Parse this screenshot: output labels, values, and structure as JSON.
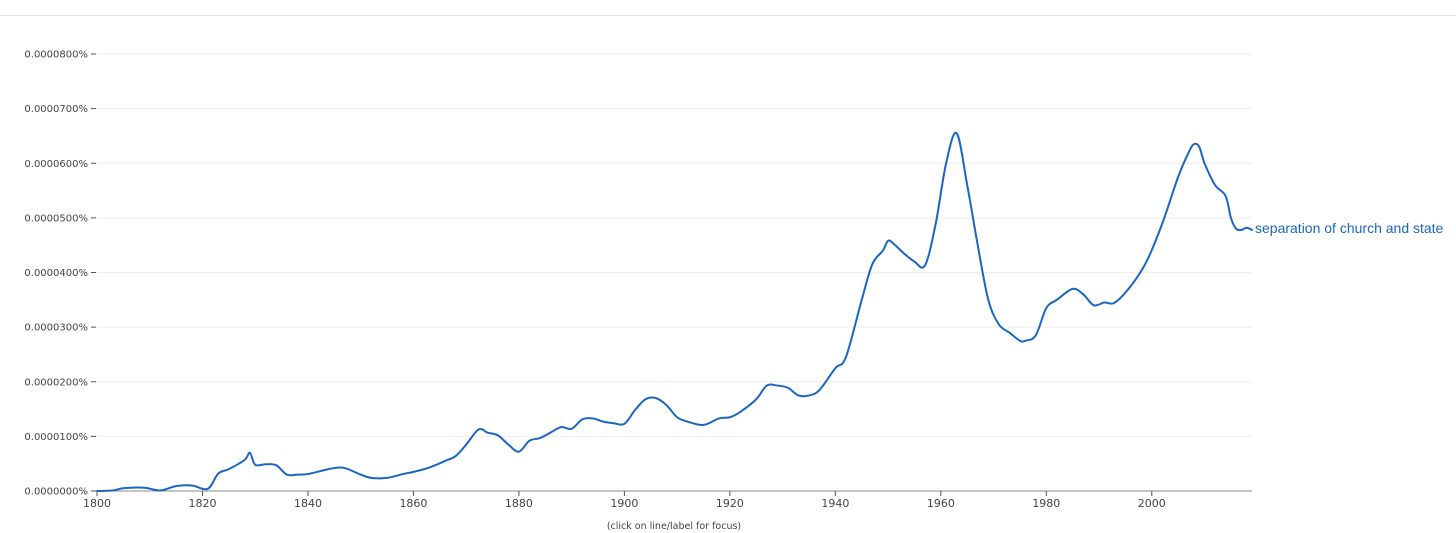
{
  "footnote": "(click on line/label for focus)",
  "chart_data": {
    "type": "line",
    "title": "",
    "xlabel": "",
    "ylabel": "",
    "xlim": [
      1800,
      2019
    ],
    "ylim": [
      0,
      8e-05
    ],
    "yticks": [
      {
        "value": 0.0,
        "label": "0.0000000%"
      },
      {
        "value": 1e-05,
        "label": "0.0000100%"
      },
      {
        "value": 2e-05,
        "label": "0.0000200%"
      },
      {
        "value": 3e-05,
        "label": "0.0000300%"
      },
      {
        "value": 4e-05,
        "label": "0.0000400%"
      },
      {
        "value": 5e-05,
        "label": "0.0000500%"
      },
      {
        "value": 6e-05,
        "label": "0.0000600%"
      },
      {
        "value": 7e-05,
        "label": "0.0000700%"
      },
      {
        "value": 8e-05,
        "label": "0.0000800%"
      }
    ],
    "xticks": [
      1800,
      1820,
      1840,
      1860,
      1880,
      1900,
      1920,
      1940,
      1960,
      1980,
      2000
    ],
    "grid": true,
    "colors": {
      "line": "#1a66c2",
      "grid": "#eeeeee",
      "axis": "#888888"
    },
    "series": [
      {
        "name": "separation of church and state",
        "x": [
          1800,
          1803,
          1805,
          1809,
          1812,
          1815,
          1818,
          1821,
          1823,
          1825,
          1828,
          1829,
          1830,
          1832,
          1834,
          1836,
          1838,
          1840,
          1843,
          1845,
          1847,
          1850,
          1852,
          1855,
          1858,
          1860,
          1863,
          1866,
          1868,
          1870,
          1872,
          1873,
          1874,
          1876,
          1878,
          1880,
          1882,
          1884,
          1886,
          1888,
          1890,
          1892,
          1894,
          1896,
          1898,
          1900,
          1902,
          1904,
          1906,
          1908,
          1910,
          1912,
          1915,
          1918,
          1920,
          1922,
          1925,
          1927,
          1929,
          1931,
          1933,
          1935,
          1937,
          1940,
          1942,
          1945,
          1947,
          1949,
          1950,
          1951,
          1953,
          1955,
          1957,
          1959,
          1961,
          1963,
          1965,
          1967,
          1969,
          1971,
          1973,
          1975,
          1976,
          1978,
          1980,
          1982,
          1985,
          1987,
          1989,
          1991,
          1993,
          1996,
          1999,
          2002,
          2005,
          2007,
          2008,
          2009,
          2010,
          2012,
          2014,
          2015,
          2016,
          2017,
          2018,
          2019
        ],
        "y": [
          0.0,
          1e-07,
          5e-07,
          6e-07,
          1e-07,
          9e-07,
          1e-06,
          4e-07,
          3.2e-06,
          4e-06,
          5.7e-06,
          7e-06,
          4.8e-06,
          4.9e-06,
          4.7e-06,
          3e-06,
          3e-06,
          3.1e-06,
          3.8e-06,
          4.2e-06,
          4.2e-06,
          3e-06,
          2.4e-06,
          2.4e-06,
          3.1e-06,
          3.5e-06,
          4.3e-06,
          5.5e-06,
          6.4e-06,
          8.5e-06,
          1.1e-05,
          1.13e-05,
          1.07e-05,
          1.02e-05,
          8.5e-06,
          7.2e-06,
          9.2e-06,
          9.7e-06,
          1.07e-05,
          1.17e-05,
          1.14e-05,
          1.31e-05,
          1.33e-05,
          1.27e-05,
          1.24e-05,
          1.23e-05,
          1.48e-05,
          1.68e-05,
          1.7e-05,
          1.57e-05,
          1.35e-05,
          1.27e-05,
          1.21e-05,
          1.33e-05,
          1.35e-05,
          1.45e-05,
          1.68e-05,
          1.93e-05,
          1.93e-05,
          1.89e-05,
          1.75e-05,
          1.75e-05,
          1.85e-05,
          2.25e-05,
          2.45e-05,
          3.5e-05,
          4.15e-05,
          4.4e-05,
          4.58e-05,
          4.53e-05,
          4.35e-05,
          4.2e-05,
          4.13e-05,
          4.88e-05,
          6e-05,
          6.55e-05,
          5.6e-05,
          4.5e-05,
          3.5e-05,
          3.05e-05,
          2.9e-05,
          2.75e-05,
          2.75e-05,
          2.85e-05,
          3.35e-05,
          3.5e-05,
          3.7e-05,
          3.6e-05,
          3.4e-05,
          3.45e-05,
          3.45e-05,
          3.75e-05,
          4.2e-05,
          4.9e-05,
          5.75e-05,
          6.2e-05,
          6.35e-05,
          6.3e-05,
          6e-05,
          5.6e-05,
          5.4e-05,
          5e-05,
          4.8e-05,
          4.78e-05,
          4.82e-05,
          4.78e-05
        ]
      }
    ]
  }
}
